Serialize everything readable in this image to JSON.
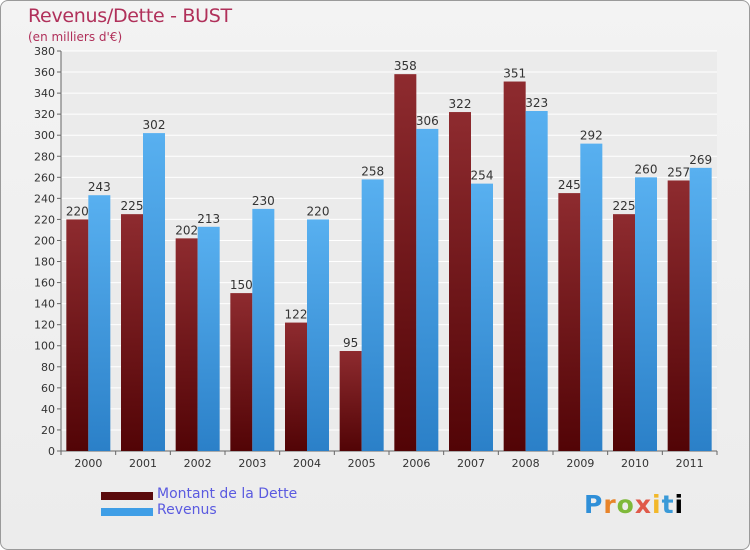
{
  "chart_data": {
    "type": "bar",
    "title": "Revenus/Dette - BUST",
    "subtitle": "(en milliers d'€)",
    "categories": [
      "2000",
      "2001",
      "2002",
      "2003",
      "2004",
      "2005",
      "2006",
      "2007",
      "2008",
      "2009",
      "2010",
      "2011"
    ],
    "series": [
      {
        "name": "Montant de la Dette",
        "values": [
          220,
          225,
          202,
          150,
          122,
          95,
          358,
          322,
          351,
          245,
          225,
          257
        ],
        "color": "#7a1518"
      },
      {
        "name": "Revenus",
        "values": [
          243,
          302,
          213,
          230,
          220,
          258,
          306,
          254,
          323,
          292,
          260,
          269
        ],
        "color": "#3f9ee6"
      }
    ],
    "ylim": [
      0,
      380
    ],
    "ytick_step": 20,
    "grid": true,
    "legend_position": "bottom-left"
  },
  "watermark": {
    "letters": [
      "P",
      "r",
      "o",
      "x",
      "i",
      "t",
      "i"
    ]
  }
}
